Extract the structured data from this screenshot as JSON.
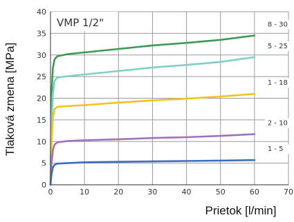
{
  "chart_data": {
    "type": "line",
    "title": "VMP 1/2\"",
    "xlabel": "Prietok [l/min]",
    "ylabel": "Tlaková zmena [MPa]",
    "xlim": [
      0,
      70
    ],
    "ylim": [
      0,
      40
    ],
    "x_ticks": [
      0,
      10,
      20,
      30,
      40,
      50,
      60,
      70
    ],
    "y_ticks": [
      0,
      5,
      10,
      15,
      20,
      25,
      30,
      35,
      40
    ],
    "grid": true,
    "series": [
      {
        "name": "8 - 30",
        "color": "#3a9a52",
        "points": [
          [
            0,
            0
          ],
          [
            0.3,
            21
          ],
          [
            0.7,
            27
          ],
          [
            1.2,
            29
          ],
          [
            2,
            29.7
          ],
          [
            5,
            30.2
          ],
          [
            10,
            30.6
          ],
          [
            20,
            31.4
          ],
          [
            30,
            32.2
          ],
          [
            40,
            32.8
          ],
          [
            50,
            33.5
          ],
          [
            60,
            34.5
          ]
        ]
      },
      {
        "name": "5 - 25",
        "color": "#7ecfc4",
        "points": [
          [
            0,
            0
          ],
          [
            0.3,
            14
          ],
          [
            0.7,
            21
          ],
          [
            1.2,
            24
          ],
          [
            2,
            24.8
          ],
          [
            5,
            25.1
          ],
          [
            10,
            25.5
          ],
          [
            20,
            26.3
          ],
          [
            30,
            27.1
          ],
          [
            40,
            27.7
          ],
          [
            50,
            28.4
          ],
          [
            60,
            29.5
          ]
        ]
      },
      {
        "name": "1 - 18",
        "color": "#f2c31c",
        "points": [
          [
            0,
            0
          ],
          [
            0.3,
            10
          ],
          [
            0.7,
            15.5
          ],
          [
            1.2,
            17.5
          ],
          [
            2,
            18
          ],
          [
            5,
            18.2
          ],
          [
            10,
            18.4
          ],
          [
            20,
            19
          ],
          [
            30,
            19.5
          ],
          [
            40,
            19.9
          ],
          [
            50,
            20.4
          ],
          [
            60,
            21
          ]
        ]
      },
      {
        "name": "2 - 10",
        "color": "#a070c0",
        "points": [
          [
            0,
            0
          ],
          [
            0.3,
            5
          ],
          [
            0.7,
            8
          ],
          [
            1.2,
            9.3
          ],
          [
            2,
            9.8
          ],
          [
            5,
            10.1
          ],
          [
            10,
            10.3
          ],
          [
            20,
            10.5
          ],
          [
            30,
            10.8
          ],
          [
            40,
            11
          ],
          [
            50,
            11.3
          ],
          [
            60,
            11.7
          ]
        ]
      },
      {
        "name": "1 - 5",
        "color": "#3a6cc0",
        "points": [
          [
            0,
            0
          ],
          [
            0.3,
            2.5
          ],
          [
            0.7,
            4
          ],
          [
            1.2,
            4.6
          ],
          [
            2,
            4.9
          ],
          [
            5,
            5
          ],
          [
            10,
            5.2
          ],
          [
            20,
            5.3
          ],
          [
            30,
            5.4
          ],
          [
            40,
            5.5
          ],
          [
            50,
            5.6
          ],
          [
            60,
            5.7
          ]
        ]
      }
    ]
  }
}
